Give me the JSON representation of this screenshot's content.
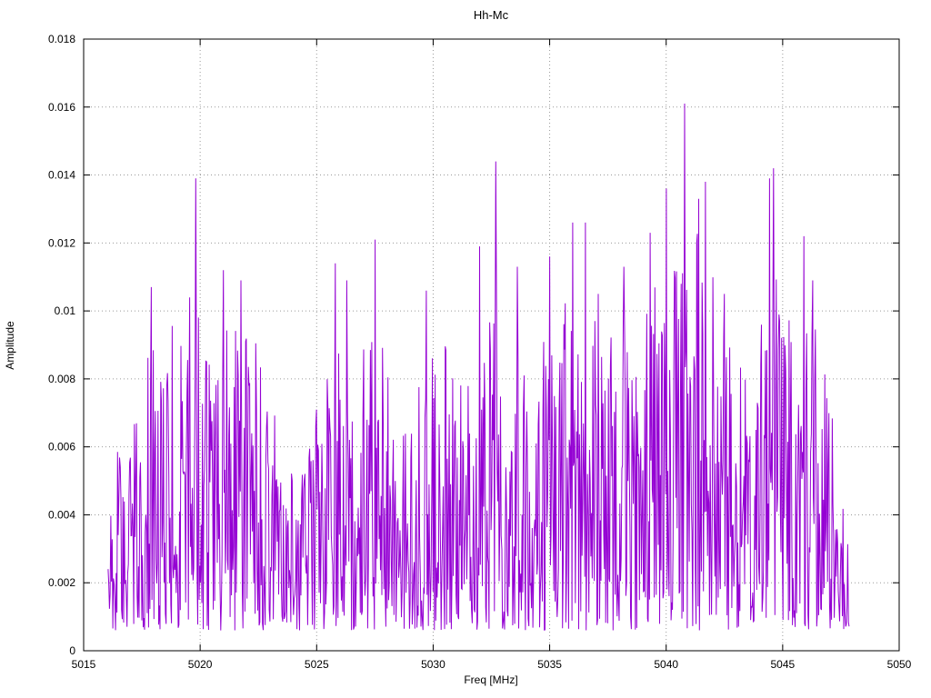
{
  "chart_data": {
    "type": "line",
    "title": "Hh-Mc",
    "xlabel": "Freq [MHz]",
    "ylabel": "Amplitude",
    "xlim": [
      5015,
      5050
    ],
    "ylim": [
      0,
      0.018
    ],
    "xticks": [
      5015,
      5020,
      5025,
      5030,
      5035,
      5040,
      5045,
      5050
    ],
    "yticks": [
      0,
      0.002,
      0.004,
      0.006,
      0.008,
      0.01,
      0.012,
      0.014,
      0.016,
      0.018
    ],
    "grid": true,
    "legend": "none",
    "line_color": "#9400d3",
    "series_name": "Hh-Mc",
    "x_start": 5016.05,
    "x_end": 5047.85,
    "n_points": 1100,
    "noise_floor": 0.0006,
    "noise_seed": 1337,
    "noise_exponent": 1.5,
    "envelope": [
      [
        5016.0,
        0.003
      ],
      [
        5016.3,
        0.006
      ],
      [
        5016.8,
        0.0056
      ],
      [
        5017.3,
        0.0075
      ],
      [
        5017.8,
        0.009
      ],
      [
        5018.3,
        0.0086
      ],
      [
        5018.8,
        0.0096
      ],
      [
        5019.3,
        0.0094
      ],
      [
        5019.9,
        0.01
      ],
      [
        5020.4,
        0.009
      ],
      [
        5021.0,
        0.0096
      ],
      [
        5021.6,
        0.0098
      ],
      [
        5022.2,
        0.0092
      ],
      [
        5022.8,
        0.0088
      ],
      [
        5023.4,
        0.007
      ],
      [
        5023.9,
        0.0055
      ],
      [
        5024.4,
        0.0052
      ],
      [
        5024.9,
        0.0078
      ],
      [
        5025.4,
        0.0082
      ],
      [
        5026.0,
        0.0095
      ],
      [
        5026.6,
        0.009
      ],
      [
        5027.2,
        0.0092
      ],
      [
        5027.8,
        0.009
      ],
      [
        5028.4,
        0.0073
      ],
      [
        5029.0,
        0.007
      ],
      [
        5029.6,
        0.0085
      ],
      [
        5030.2,
        0.0092
      ],
      [
        5030.8,
        0.0088
      ],
      [
        5031.4,
        0.0095
      ],
      [
        5032.0,
        0.0098
      ],
      [
        5032.7,
        0.0105
      ],
      [
        5033.3,
        0.009
      ],
      [
        5033.9,
        0.0086
      ],
      [
        5034.5,
        0.0095
      ],
      [
        5035.1,
        0.0102
      ],
      [
        5035.7,
        0.0105
      ],
      [
        5036.3,
        0.0108
      ],
      [
        5036.9,
        0.0098
      ],
      [
        5037.5,
        0.0092
      ],
      [
        5038.1,
        0.0098
      ],
      [
        5038.7,
        0.009
      ],
      [
        5039.3,
        0.0105
      ],
      [
        5040.0,
        0.0115
      ],
      [
        5040.6,
        0.012
      ],
      [
        5041.2,
        0.0125
      ],
      [
        5041.8,
        0.0118
      ],
      [
        5042.4,
        0.0095
      ],
      [
        5043.0,
        0.0086
      ],
      [
        5043.6,
        0.0078
      ],
      [
        5044.2,
        0.0105
      ],
      [
        5044.8,
        0.011
      ],
      [
        5045.4,
        0.0098
      ],
      [
        5046.0,
        0.0105
      ],
      [
        5046.6,
        0.0095
      ],
      [
        5047.1,
        0.007
      ],
      [
        5047.5,
        0.005
      ],
      [
        5047.9,
        0.0028
      ]
    ],
    "peaks": [
      [
        5017.9,
        0.0107
      ],
      [
        5019.55,
        0.0104
      ],
      [
        5019.8,
        0.0139
      ],
      [
        5021.0,
        0.0112
      ],
      [
        5021.75,
        0.0109
      ],
      [
        5025.8,
        0.0114
      ],
      [
        5026.3,
        0.0109
      ],
      [
        5027.5,
        0.0121
      ],
      [
        5029.7,
        0.0106
      ],
      [
        5032.0,
        0.0119
      ],
      [
        5032.7,
        0.0144
      ],
      [
        5033.6,
        0.0113
      ],
      [
        5035.0,
        0.0116
      ],
      [
        5036.0,
        0.0126
      ],
      [
        5036.55,
        0.0126
      ],
      [
        5037.1,
        0.0105
      ],
      [
        5038.2,
        0.0113
      ],
      [
        5039.3,
        0.0123
      ],
      [
        5040.0,
        0.0136
      ],
      [
        5040.8,
        0.0161
      ],
      [
        5041.4,
        0.0133
      ],
      [
        5041.7,
        0.0138
      ],
      [
        5042.5,
        0.0105
      ],
      [
        5044.45,
        0.0139
      ],
      [
        5044.6,
        0.0142
      ],
      [
        5045.9,
        0.0122
      ],
      [
        5046.3,
        0.0109
      ]
    ]
  },
  "colors": {
    "background": "#ffffff",
    "grid": "#9a9a9a",
    "axis": "#000000",
    "text": "#000000"
  }
}
